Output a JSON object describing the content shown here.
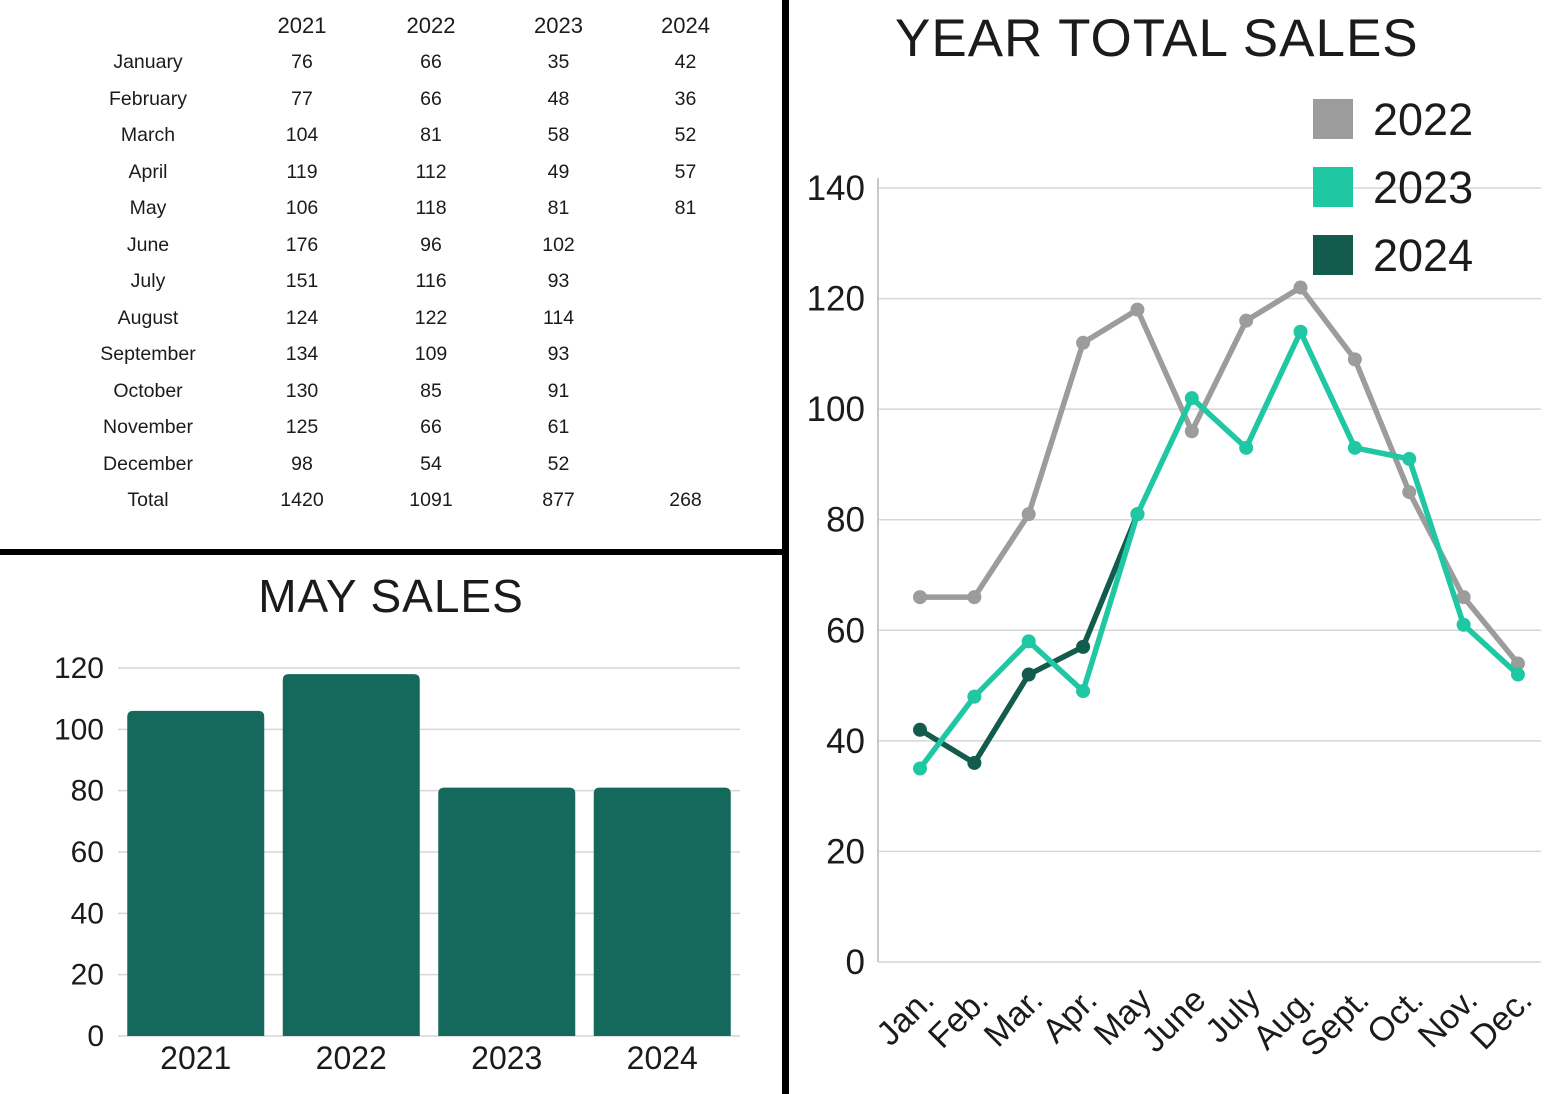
{
  "table": {
    "col_headers": [
      "2021",
      "2022",
      "2023",
      "2024"
    ],
    "rows": [
      {
        "label": "January",
        "values": [
          "76",
          "66",
          "35",
          "42"
        ]
      },
      {
        "label": "February",
        "values": [
          "77",
          "66",
          "48",
          "36"
        ]
      },
      {
        "label": "March",
        "values": [
          "104",
          "81",
          "58",
          "52"
        ]
      },
      {
        "label": "April",
        "values": [
          "119",
          "112",
          "49",
          "57"
        ]
      },
      {
        "label": "May",
        "values": [
          "106",
          "118",
          "81",
          "81"
        ]
      },
      {
        "label": "June",
        "values": [
          "176",
          "96",
          "102",
          ""
        ]
      },
      {
        "label": "July",
        "values": [
          "151",
          "116",
          "93",
          ""
        ]
      },
      {
        "label": "August",
        "values": [
          "124",
          "122",
          "114",
          ""
        ]
      },
      {
        "label": "September",
        "values": [
          "134",
          "109",
          "93",
          ""
        ]
      },
      {
        "label": "October",
        "values": [
          "130",
          "85",
          "91",
          ""
        ]
      },
      {
        "label": "November",
        "values": [
          "125",
          "66",
          "61",
          ""
        ]
      },
      {
        "label": "December",
        "values": [
          "98",
          "54",
          "52",
          ""
        ]
      },
      {
        "label": "Total",
        "values": [
          "1420",
          "1091",
          "877",
          "268"
        ]
      }
    ]
  },
  "chart_data": [
    {
      "type": "bar",
      "title": "MAY SALES",
      "categories": [
        "2021",
        "2022",
        "2023",
        "2024"
      ],
      "values": [
        106,
        118,
        81,
        81
      ],
      "xlabel": "",
      "ylabel": "",
      "ylim": [
        0,
        120
      ],
      "ytick_step": 20,
      "grid": true,
      "bar_color": "#15695c"
    },
    {
      "type": "line",
      "title": "YEAR TOTAL SALES",
      "categories": [
        "Jan.",
        "Feb.",
        "Mar.",
        "Apr.",
        "May",
        "June",
        "July",
        "Aug.",
        "Sept.",
        "Oct.",
        "Nov.",
        "Dec."
      ],
      "series": [
        {
          "name": "2022",
          "color": "#9c9c9c",
          "values": [
            66,
            66,
            81,
            112,
            118,
            96,
            116,
            122,
            109,
            85,
            66,
            54
          ]
        },
        {
          "name": "2023",
          "color": "#1fc7a3",
          "values": [
            35,
            48,
            58,
            49,
            81,
            102,
            93,
            114,
            93,
            91,
            61,
            52
          ]
        },
        {
          "name": "2024",
          "color": "#135c4d",
          "values": [
            42,
            36,
            52,
            57,
            81,
            null,
            null,
            null,
            null,
            null,
            null,
            null
          ]
        }
      ],
      "xlabel": "",
      "ylabel": "",
      "ylim": [
        0,
        140
      ],
      "ytick_step": 20,
      "grid": true,
      "legend_position": "top-right",
      "draw_order": [
        "2022",
        "2024",
        "2023"
      ]
    }
  ],
  "colors": {
    "divider": "#000000",
    "grid": "#d6d6d6",
    "text": "#1b1b1b"
  }
}
